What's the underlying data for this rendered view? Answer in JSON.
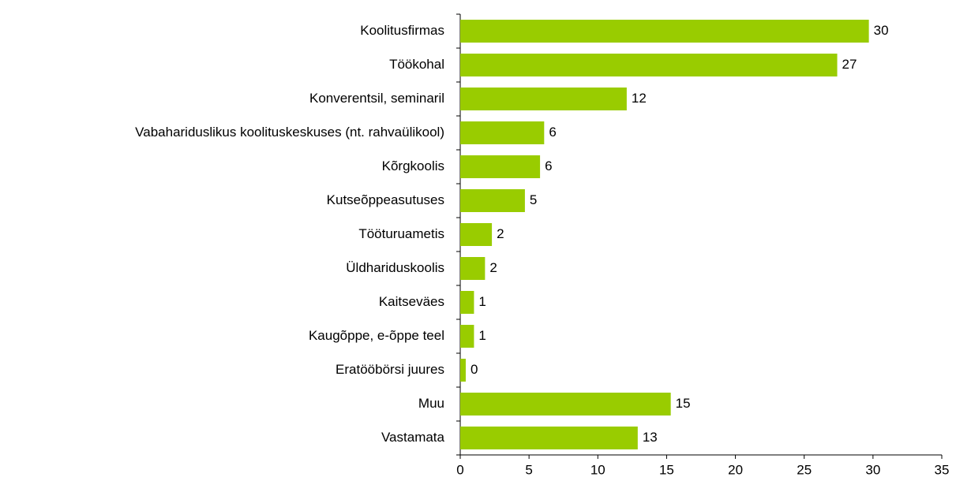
{
  "chart_data": {
    "type": "bar",
    "orientation": "horizontal",
    "categories": [
      "Koolitusfirmas",
      "Töökohal",
      "Konverentsil, seminaril",
      "Vabahariduslikus koolituskeskuses (nt. rahvaülikool)",
      "Kõrgkoolis",
      "Kutseõppeasutuses",
      "Tööturuametis",
      "Üldhariduskoolis",
      "Kaitseväes",
      "Kaugõppe, e-õppe teel",
      "Eratööbörsi juures",
      "Muu",
      "Vastamata"
    ],
    "values": [
      29.7,
      27.4,
      12.1,
      6.1,
      5.8,
      4.7,
      2.3,
      1.8,
      1.0,
      1.0,
      0.4,
      15.3,
      12.9
    ],
    "value_labels": [
      "30",
      "27",
      "12",
      "6",
      "6",
      "5",
      "2",
      "2",
      "1",
      "1",
      "0",
      "15",
      "13"
    ],
    "color": "#99cc00",
    "xlim": [
      0,
      35
    ],
    "xticks": [
      0,
      5,
      10,
      15,
      20,
      25,
      30,
      35
    ],
    "grid": false
  }
}
